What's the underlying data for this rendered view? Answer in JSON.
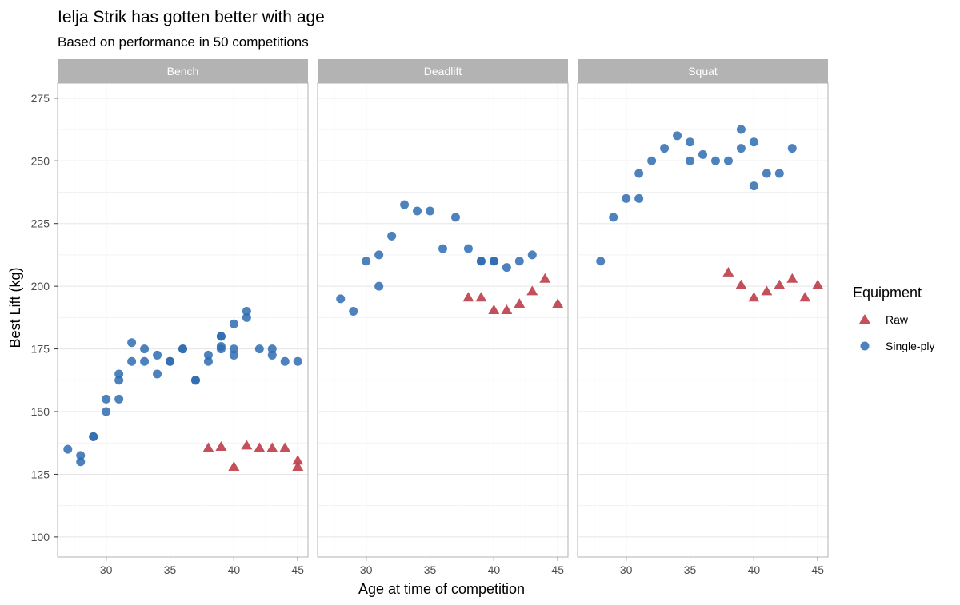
{
  "chart_data": {
    "type": "scatter",
    "title": "Ielja Strik has gotten better with age",
    "subtitle": "Based on performance in 50 competitions",
    "xlabel": "Age at time of competition",
    "ylabel": "Best Lift (kg)",
    "xlim": [
      26.2,
      45.8
    ],
    "ylim": [
      92,
      281
    ],
    "x_ticks": [
      30,
      35,
      40,
      45
    ],
    "y_ticks": [
      100,
      125,
      150,
      175,
      200,
      225,
      250,
      275
    ],
    "grid": true,
    "facets": [
      "Bench",
      "Deadlift",
      "Squat"
    ],
    "legend": {
      "title": "Equipment",
      "position": "right",
      "entries": [
        {
          "label": "Raw",
          "shape": "triangle",
          "color": "#b8313e"
        },
        {
          "label": "Single-ply",
          "shape": "circle",
          "color": "#2e6cb2"
        }
      ]
    },
    "series": [
      {
        "name": "Raw",
        "shape": "triangle",
        "color": "#b8313e",
        "points": {
          "Bench": [
            [
              38,
              135.5
            ],
            [
              39,
              136
            ],
            [
              40,
              128
            ],
            [
              41,
              136.5
            ],
            [
              42,
              135.5
            ],
            [
              43,
              135.5
            ],
            [
              44,
              135.5
            ],
            [
              45,
              130.5
            ],
            [
              45,
              128
            ]
          ],
          "Deadlift": [
            [
              38,
              195.5
            ],
            [
              39,
              195.5
            ],
            [
              40,
              190.5
            ],
            [
              41,
              190.5
            ],
            [
              42,
              193
            ],
            [
              43,
              198
            ],
            [
              44,
              203
            ],
            [
              45,
              193
            ]
          ],
          "Squat": [
            [
              38,
              205.5
            ],
            [
              39,
              200.5
            ],
            [
              40,
              195.5
            ],
            [
              41,
              198
            ],
            [
              42,
              200.5
            ],
            [
              43,
              203
            ],
            [
              44,
              195.5
            ],
            [
              45,
              200.5
            ]
          ]
        }
      },
      {
        "name": "Single-ply",
        "shape": "circle",
        "color": "#2e6cb2",
        "points": {
          "Bench": [
            [
              27,
              135
            ],
            [
              28,
              132.5
            ],
            [
              28,
              130
            ],
            [
              29,
              140
            ],
            [
              29,
              140
            ],
            [
              30,
              155
            ],
            [
              30,
              150
            ],
            [
              31,
              165
            ],
            [
              31,
              162.5
            ],
            [
              31,
              155
            ],
            [
              32,
              177.5
            ],
            [
              32,
              170
            ],
            [
              33,
              175
            ],
            [
              33,
              170
            ],
            [
              34,
              172.5
            ],
            [
              34,
              165
            ],
            [
              35,
              170
            ],
            [
              35,
              170
            ],
            [
              36,
              175
            ],
            [
              36,
              175
            ],
            [
              37,
              162.5
            ],
            [
              37,
              162.5
            ],
            [
              38,
              172.5
            ],
            [
              38,
              170
            ],
            [
              39,
              180
            ],
            [
              39,
              180
            ],
            [
              39,
              176
            ],
            [
              39,
              175
            ],
            [
              40,
              185
            ],
            [
              40,
              175
            ],
            [
              40,
              172.5
            ],
            [
              41,
              190
            ],
            [
              41,
              187.5
            ],
            [
              42,
              175
            ],
            [
              43,
              175
            ],
            [
              43,
              172.5
            ],
            [
              44,
              170
            ],
            [
              45,
              170
            ]
          ],
          "Deadlift": [
            [
              28,
              195
            ],
            [
              29,
              190
            ],
            [
              30,
              210
            ],
            [
              31,
              212.5
            ],
            [
              31,
              200
            ],
            [
              32,
              220
            ],
            [
              33,
              232.5
            ],
            [
              34,
              230
            ],
            [
              35,
              230
            ],
            [
              36,
              215
            ],
            [
              37,
              227.5
            ],
            [
              38,
              215
            ],
            [
              39,
              210
            ],
            [
              39,
              210
            ],
            [
              40,
              210
            ],
            [
              40,
              210
            ],
            [
              41,
              207.5
            ],
            [
              42,
              210
            ],
            [
              43,
              212.5
            ]
          ],
          "Squat": [
            [
              28,
              210
            ],
            [
              29,
              227.5
            ],
            [
              30,
              235
            ],
            [
              31,
              245
            ],
            [
              31,
              235
            ],
            [
              32,
              250
            ],
            [
              33,
              255
            ],
            [
              34,
              260
            ],
            [
              35,
              257.5
            ],
            [
              35,
              250
            ],
            [
              36,
              252.5
            ],
            [
              37,
              250
            ],
            [
              38,
              250
            ],
            [
              39,
              262.5
            ],
            [
              39,
              255
            ],
            [
              40,
              257.5
            ],
            [
              40,
              240
            ],
            [
              41,
              245
            ],
            [
              42,
              245
            ],
            [
              43,
              255
            ]
          ]
        }
      }
    ]
  }
}
